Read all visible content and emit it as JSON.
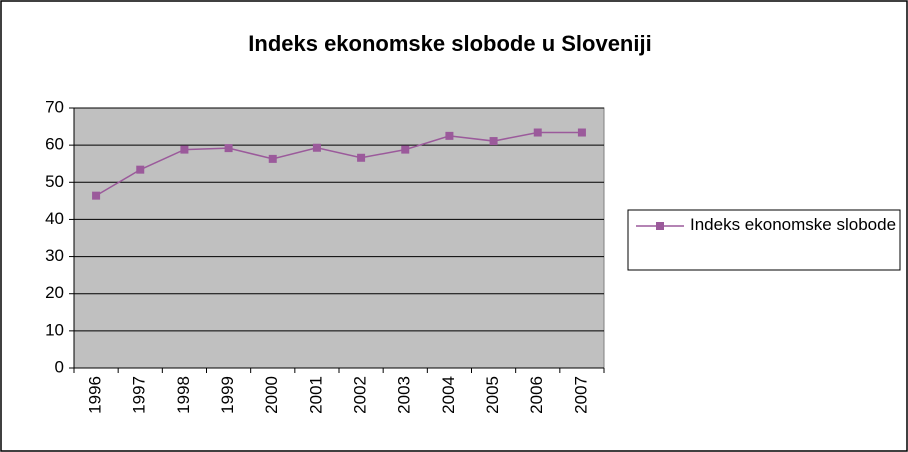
{
  "chart_data": {
    "type": "line",
    "title": "Indeks ekonomske slobode u Sloveniji",
    "categories": [
      "1996",
      "1997",
      "1998",
      "1999",
      "2000",
      "2001",
      "2002",
      "2003",
      "2004",
      "2005",
      "2006",
      "2007"
    ],
    "series": [
      {
        "name": "Indeks ekonomske slobode",
        "color": "#9b5a9b",
        "values": [
          46.4,
          53.4,
          58.8,
          59.2,
          56.3,
          59.3,
          56.6,
          58.8,
          62.5,
          61.1,
          63.4,
          63.4
        ]
      }
    ],
    "ylim": [
      0,
      70
    ],
    "yticks": [
      0,
      10,
      20,
      30,
      40,
      50,
      60,
      70
    ],
    "grid": true,
    "legend": "right"
  }
}
